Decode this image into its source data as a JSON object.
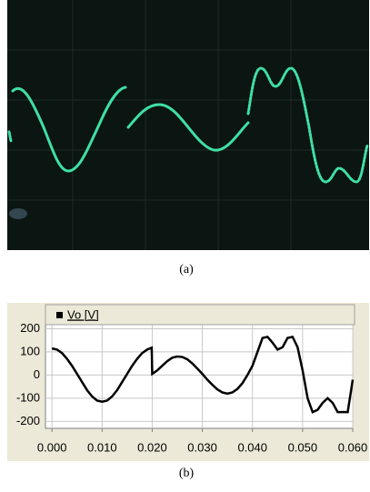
{
  "captions": [
    "(a)",
    "(b)"
  ],
  "chart_data": {
    "type": "line",
    "x": [
      0,
      0.001,
      0.002,
      0.003,
      0.004,
      0.005,
      0.006,
      0.007,
      0.008,
      0.009,
      0.01,
      0.011,
      0.012,
      0.013,
      0.014,
      0.015,
      0.016,
      0.017,
      0.018,
      0.019,
      0.0199,
      0.02,
      0.021,
      0.022,
      0.023,
      0.024,
      0.025,
      0.026,
      0.027,
      0.028,
      0.029,
      0.03,
      0.031,
      0.032,
      0.033,
      0.034,
      0.035,
      0.036,
      0.037,
      0.038,
      0.039,
      0.04,
      0.041,
      0.042,
      0.043,
      0.044,
      0.045,
      0.046,
      0.047,
      0.048,
      0.049,
      0.05,
      0.051,
      0.052,
      0.053,
      0.054,
      0.055,
      0.056,
      0.057,
      0.058,
      0.059,
      0.06
    ],
    "series": [
      {
        "name": "Vo [V]",
        "color": "#000000",
        "values": [
          115,
          110,
          95,
          70,
          40,
          5,
          -30,
          -65,
          -92,
          -110,
          -115,
          -110,
          -92,
          -65,
          -30,
          5,
          40,
          70,
          95,
          110,
          118,
          5,
          20,
          40,
          60,
          75,
          80,
          78,
          68,
          50,
          28,
          5,
          -20,
          -42,
          -62,
          -75,
          -80,
          -75,
          -60,
          -35,
          0,
          40,
          100,
          160,
          165,
          140,
          110,
          120,
          160,
          165,
          120,
          20,
          -100,
          -160,
          -150,
          -120,
          -100,
          -120,
          -160,
          -160,
          -160,
          -20
        ]
      }
    ],
    "xlim": [
      -0.0013,
      0.06
    ],
    "ylim": [
      -230,
      245
    ],
    "xticks": [
      {
        "value": 0,
        "label": "0.000"
      },
      {
        "value": 0.01,
        "label": "0.010"
      },
      {
        "value": 0.02,
        "label": "0.020"
      },
      {
        "value": 0.03,
        "label": "0.030"
      },
      {
        "value": 0.04,
        "label": "0.040"
      },
      {
        "value": 0.05,
        "label": "0.050"
      },
      {
        "value": 0.06,
        "label": "0.060"
      }
    ],
    "yticks": [
      -200,
      -100,
      0,
      100,
      200
    ],
    "grid": true
  }
}
